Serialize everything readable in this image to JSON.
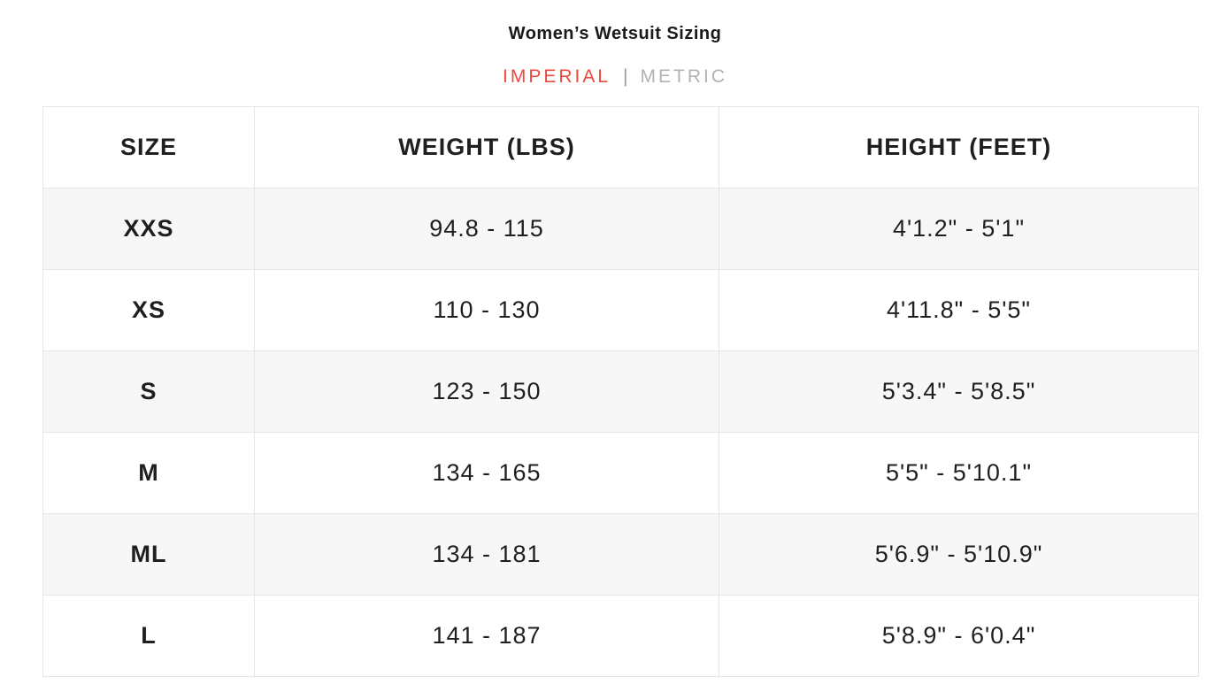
{
  "page": {
    "title": "Women’s Wetsuit Sizing"
  },
  "unit_toggle": {
    "imperial_label": "IMPERIAL",
    "metric_label": "METRIC",
    "separator": "|",
    "active": "IMPERIAL",
    "active_color": "#ed4a3c",
    "inactive_color": "#b2b2b2"
  },
  "table": {
    "columns": [
      "SIZE",
      "WEIGHT (LBS)",
      "HEIGHT (FEET)"
    ],
    "rows": [
      {
        "size": "XXS",
        "weight": "94.8 - 115",
        "height": "4'1.2\" - 5'1\""
      },
      {
        "size": "XS",
        "weight": "110 - 130",
        "height": "4'11.8\" - 5'5\""
      },
      {
        "size": "S",
        "weight": "123 - 150",
        "height": "5'3.4\" - 5'8.5\""
      },
      {
        "size": "M",
        "weight": "134 - 165",
        "height": "5'5\" - 5'10.1\""
      },
      {
        "size": "ML",
        "weight": "134 - 181",
        "height": "5'6.9\" - 5'10.9\""
      },
      {
        "size": "L",
        "weight": "141 - 187",
        "height": "5'8.9\" - 6'0.4\""
      }
    ]
  }
}
